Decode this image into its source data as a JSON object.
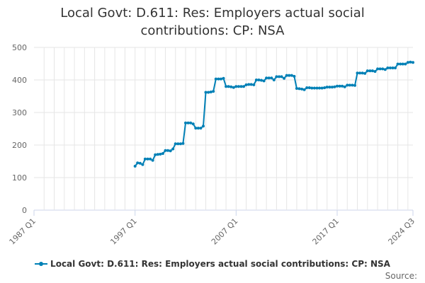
{
  "colors": {
    "series": "#0080b6",
    "grid": "#e6e6e6",
    "axis": "#ccd6eb",
    "text": "#666666"
  },
  "title_lines": [
    "Local Govt: D.611: Res: Employers actual social",
    "contributions: CP: NSA"
  ],
  "source_label": "Source:",
  "chart_data": {
    "type": "line",
    "title": "Local Govt: D.611: Res: Employers actual social contributions: CP: NSA",
    "ylim": [
      0,
      500
    ],
    "yticks": [
      0,
      100,
      200,
      300,
      400,
      500
    ],
    "xlim": [
      "1987 Q1",
      "2024 Q3"
    ],
    "xticks": [
      "1987 Q1",
      "1997 Q1",
      "2007 Q1",
      "2017 Q1",
      "2024 Q3"
    ],
    "grid": true,
    "legend": "bottom-center",
    "series": [
      {
        "name": "Local Govt: D.611: Res: Employers actual social contributions: CP: NSA",
        "start": "1997 Q1",
        "values": [
          135,
          145,
          144,
          140,
          157,
          157,
          157,
          153,
          170,
          171,
          172,
          174,
          183,
          183,
          182,
          188,
          204,
          204,
          204,
          205,
          268,
          268,
          268,
          265,
          252,
          252,
          252,
          258,
          362,
          362,
          363,
          365,
          403,
          403,
          403,
          405,
          380,
          380,
          379,
          377,
          380,
          380,
          380,
          380,
          385,
          386,
          386,
          385,
          400,
          400,
          399,
          397,
          406,
          406,
          406,
          400,
          410,
          410,
          410,
          405,
          414,
          414,
          414,
          411,
          374,
          373,
          372,
          370,
          376,
          376,
          375,
          375,
          375,
          375,
          375,
          376,
          378,
          378,
          378,
          379,
          381,
          381,
          381,
          379,
          384,
          384,
          384,
          383,
          421,
          421,
          421,
          420,
          428,
          428,
          428,
          426,
          434,
          434,
          434,
          432,
          437,
          437,
          437,
          437,
          449,
          449,
          449,
          449,
          454,
          455,
          454
        ]
      }
    ]
  }
}
